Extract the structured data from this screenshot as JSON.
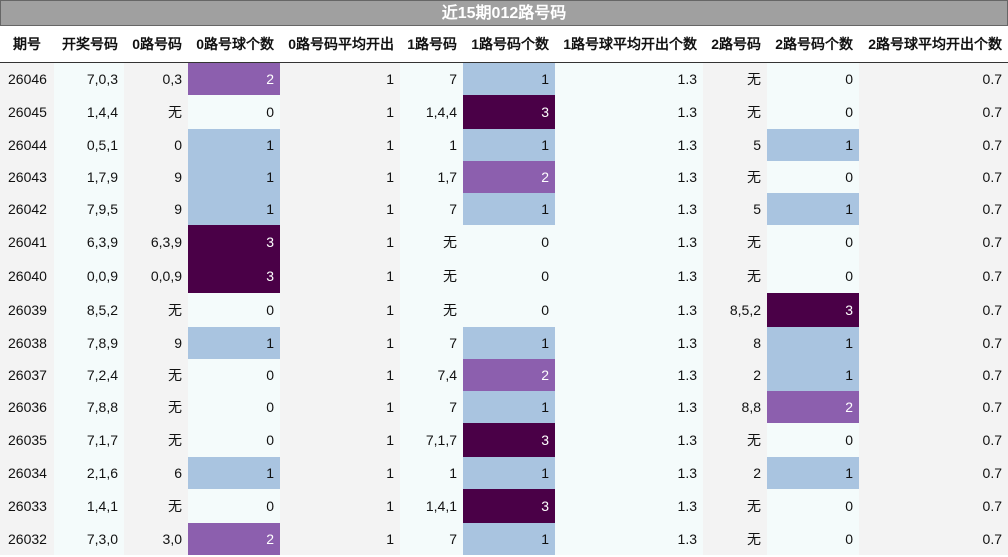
{
  "title": "近15期012路号码",
  "headers": [
    "期号",
    "开奖号码",
    "0路号码",
    "0路号球个数",
    "0路号码平均开出",
    "1路号码",
    "1路号码个数",
    "1路号球平均开出个数",
    "2路号码",
    "2路号码个数",
    "2路号球平均开出个数"
  ],
  "rows": [
    [
      "26046",
      "7,0,3",
      "0,3",
      "2",
      "1",
      "7",
      "1",
      "1.3",
      "无",
      "0",
      "0.7"
    ],
    [
      "26045",
      "1,4,4",
      "无",
      "0",
      "1",
      "1,4,4",
      "3",
      "1.3",
      "无",
      "0",
      "0.7"
    ],
    [
      "26044",
      "0,5,1",
      "0",
      "1",
      "1",
      "1",
      "1",
      "1.3",
      "5",
      "1",
      "0.7"
    ],
    [
      "26043",
      "1,7,9",
      "9",
      "1",
      "1",
      "1,7",
      "2",
      "1.3",
      "无",
      "0",
      "0.7"
    ],
    [
      "26042",
      "7,9,5",
      "9",
      "1",
      "1",
      "7",
      "1",
      "1.3",
      "5",
      "1",
      "0.7"
    ],
    [
      "26041",
      "6,3,9",
      "6,3,9",
      "3",
      "1",
      "无",
      "0",
      "1.3",
      "无",
      "0",
      "0.7"
    ],
    [
      "26040",
      "0,0,9",
      "0,0,9",
      "3",
      "1",
      "无",
      "0",
      "1.3",
      "无",
      "0",
      "0.7"
    ],
    [
      "26039",
      "8,5,2",
      "无",
      "0",
      "1",
      "无",
      "0",
      "1.3",
      "8,5,2",
      "3",
      "0.7"
    ],
    [
      "26038",
      "7,8,9",
      "9",
      "1",
      "1",
      "7",
      "1",
      "1.3",
      "8",
      "1",
      "0.7"
    ],
    [
      "26037",
      "7,2,4",
      "无",
      "0",
      "1",
      "7,4",
      "2",
      "1.3",
      "2",
      "1",
      "0.7"
    ],
    [
      "26036",
      "7,8,8",
      "无",
      "0",
      "1",
      "7",
      "1",
      "1.3",
      "8,8",
      "2",
      "0.7"
    ],
    [
      "26035",
      "7,1,7",
      "无",
      "0",
      "1",
      "7,1,7",
      "3",
      "1.3",
      "无",
      "0",
      "0.7"
    ],
    [
      "26034",
      "2,1,6",
      "6",
      "1",
      "1",
      "1",
      "1",
      "1.3",
      "2",
      "1",
      "0.7"
    ],
    [
      "26033",
      "1,4,1",
      "无",
      "0",
      "1",
      "1,4,1",
      "3",
      "1.3",
      "无",
      "0",
      "0.7"
    ],
    [
      "26032",
      "7,3,0",
      "3,0",
      "2",
      "1",
      "7",
      "1",
      "1.3",
      "无",
      "0",
      "0.7"
    ]
  ],
  "colors": {
    "count_0": "#f4fbfb",
    "count_1": "#a9c4e0",
    "count_2": "#8c5fae",
    "count_3": "#4a0047",
    "stripe_odd": "#f3f3f3",
    "stripe_even": "#f4fbfb",
    "title_bg": "#a0a0a0"
  }
}
